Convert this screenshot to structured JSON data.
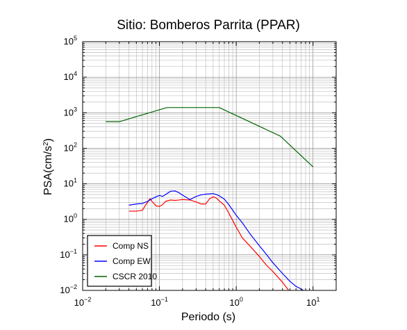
{
  "chart_data": {
    "type": "line",
    "title": "Sitio: Bomberos Parrita (PPAR)",
    "xlabel": "Periodo (s)",
    "ylabel_base": "PSA(cm/s",
    "ylabel_sup": "2",
    "ylabel_close": ")",
    "xscale": "log",
    "yscale": "log",
    "xlim": [
      0.01,
      20
    ],
    "ylim": [
      0.01,
      100000
    ],
    "grid": true,
    "legend_position": "bottom-left",
    "x_ticks": [
      {
        "base": "10",
        "exp": "−2",
        "value": 0.01
      },
      {
        "base": "10",
        "exp": "−1",
        "value": 0.1
      },
      {
        "base": "10",
        "exp": "0",
        "value": 1
      },
      {
        "base": "10",
        "exp": "1",
        "value": 10
      }
    ],
    "y_ticks": [
      {
        "base": "10",
        "exp": "−2",
        "value": 0.01
      },
      {
        "base": "10",
        "exp": "−1",
        "value": 0.1
      },
      {
        "base": "10",
        "exp": "0",
        "value": 1
      },
      {
        "base": "10",
        "exp": "1",
        "value": 10
      },
      {
        "base": "10",
        "exp": "2",
        "value": 100
      },
      {
        "base": "10",
        "exp": "3",
        "value": 1000
      },
      {
        "base": "10",
        "exp": "4",
        "value": 10000
      },
      {
        "base": "10",
        "exp": "5",
        "value": 100000
      }
    ],
    "series": [
      {
        "name": "Comp NS",
        "color": "#ff0000",
        "x": [
          0.04,
          0.05,
          0.06,
          0.065,
          0.07,
          0.075,
          0.08,
          0.09,
          0.1,
          0.11,
          0.12,
          0.14,
          0.16,
          0.2,
          0.25,
          0.3,
          0.35,
          0.4,
          0.45,
          0.5,
          0.55,
          0.6,
          0.7,
          0.8,
          1.0,
          1.2,
          1.5,
          2.0,
          2.5,
          3.0,
          4.0,
          5.0,
          6.0,
          6.5
        ],
        "y": [
          1.7,
          1.7,
          1.8,
          2.4,
          3.0,
          3.8,
          3.2,
          2.4,
          2.3,
          2.6,
          3.2,
          3.5,
          3.4,
          3.6,
          3.5,
          3.1,
          2.7,
          2.7,
          3.8,
          4.3,
          4.0,
          3.3,
          2.5,
          1.5,
          0.6,
          0.3,
          0.18,
          0.09,
          0.05,
          0.034,
          0.017,
          0.009,
          0.006,
          0.005
        ]
      },
      {
        "name": "Comp EW",
        "color": "#0000ff",
        "x": [
          0.04,
          0.05,
          0.06,
          0.07,
          0.08,
          0.09,
          0.1,
          0.11,
          0.12,
          0.14,
          0.16,
          0.18,
          0.2,
          0.25,
          0.3,
          0.35,
          0.4,
          0.5,
          0.55,
          0.6,
          0.7,
          0.8,
          1.0,
          1.2,
          1.5,
          2.0,
          2.5,
          3.0,
          4.0,
          5.0,
          6.0,
          7.0,
          8.0
        ],
        "y": [
          2.5,
          2.7,
          2.8,
          3.2,
          3.8,
          4.3,
          4.7,
          4.4,
          5.0,
          6.2,
          6.3,
          5.6,
          4.8,
          3.6,
          4.4,
          4.9,
          5.1,
          5.3,
          5.0,
          4.6,
          3.7,
          2.6,
          1.3,
          0.8,
          0.4,
          0.18,
          0.1,
          0.06,
          0.03,
          0.018,
          0.013,
          0.011,
          0.009
        ]
      },
      {
        "name": "CSCR 2010",
        "color": "#006400",
        "x": [
          0.02,
          0.03,
          0.125,
          0.6,
          3.75,
          10
        ],
        "y": [
          560,
          560,
          1400,
          1400,
          220,
          30
        ]
      }
    ]
  }
}
